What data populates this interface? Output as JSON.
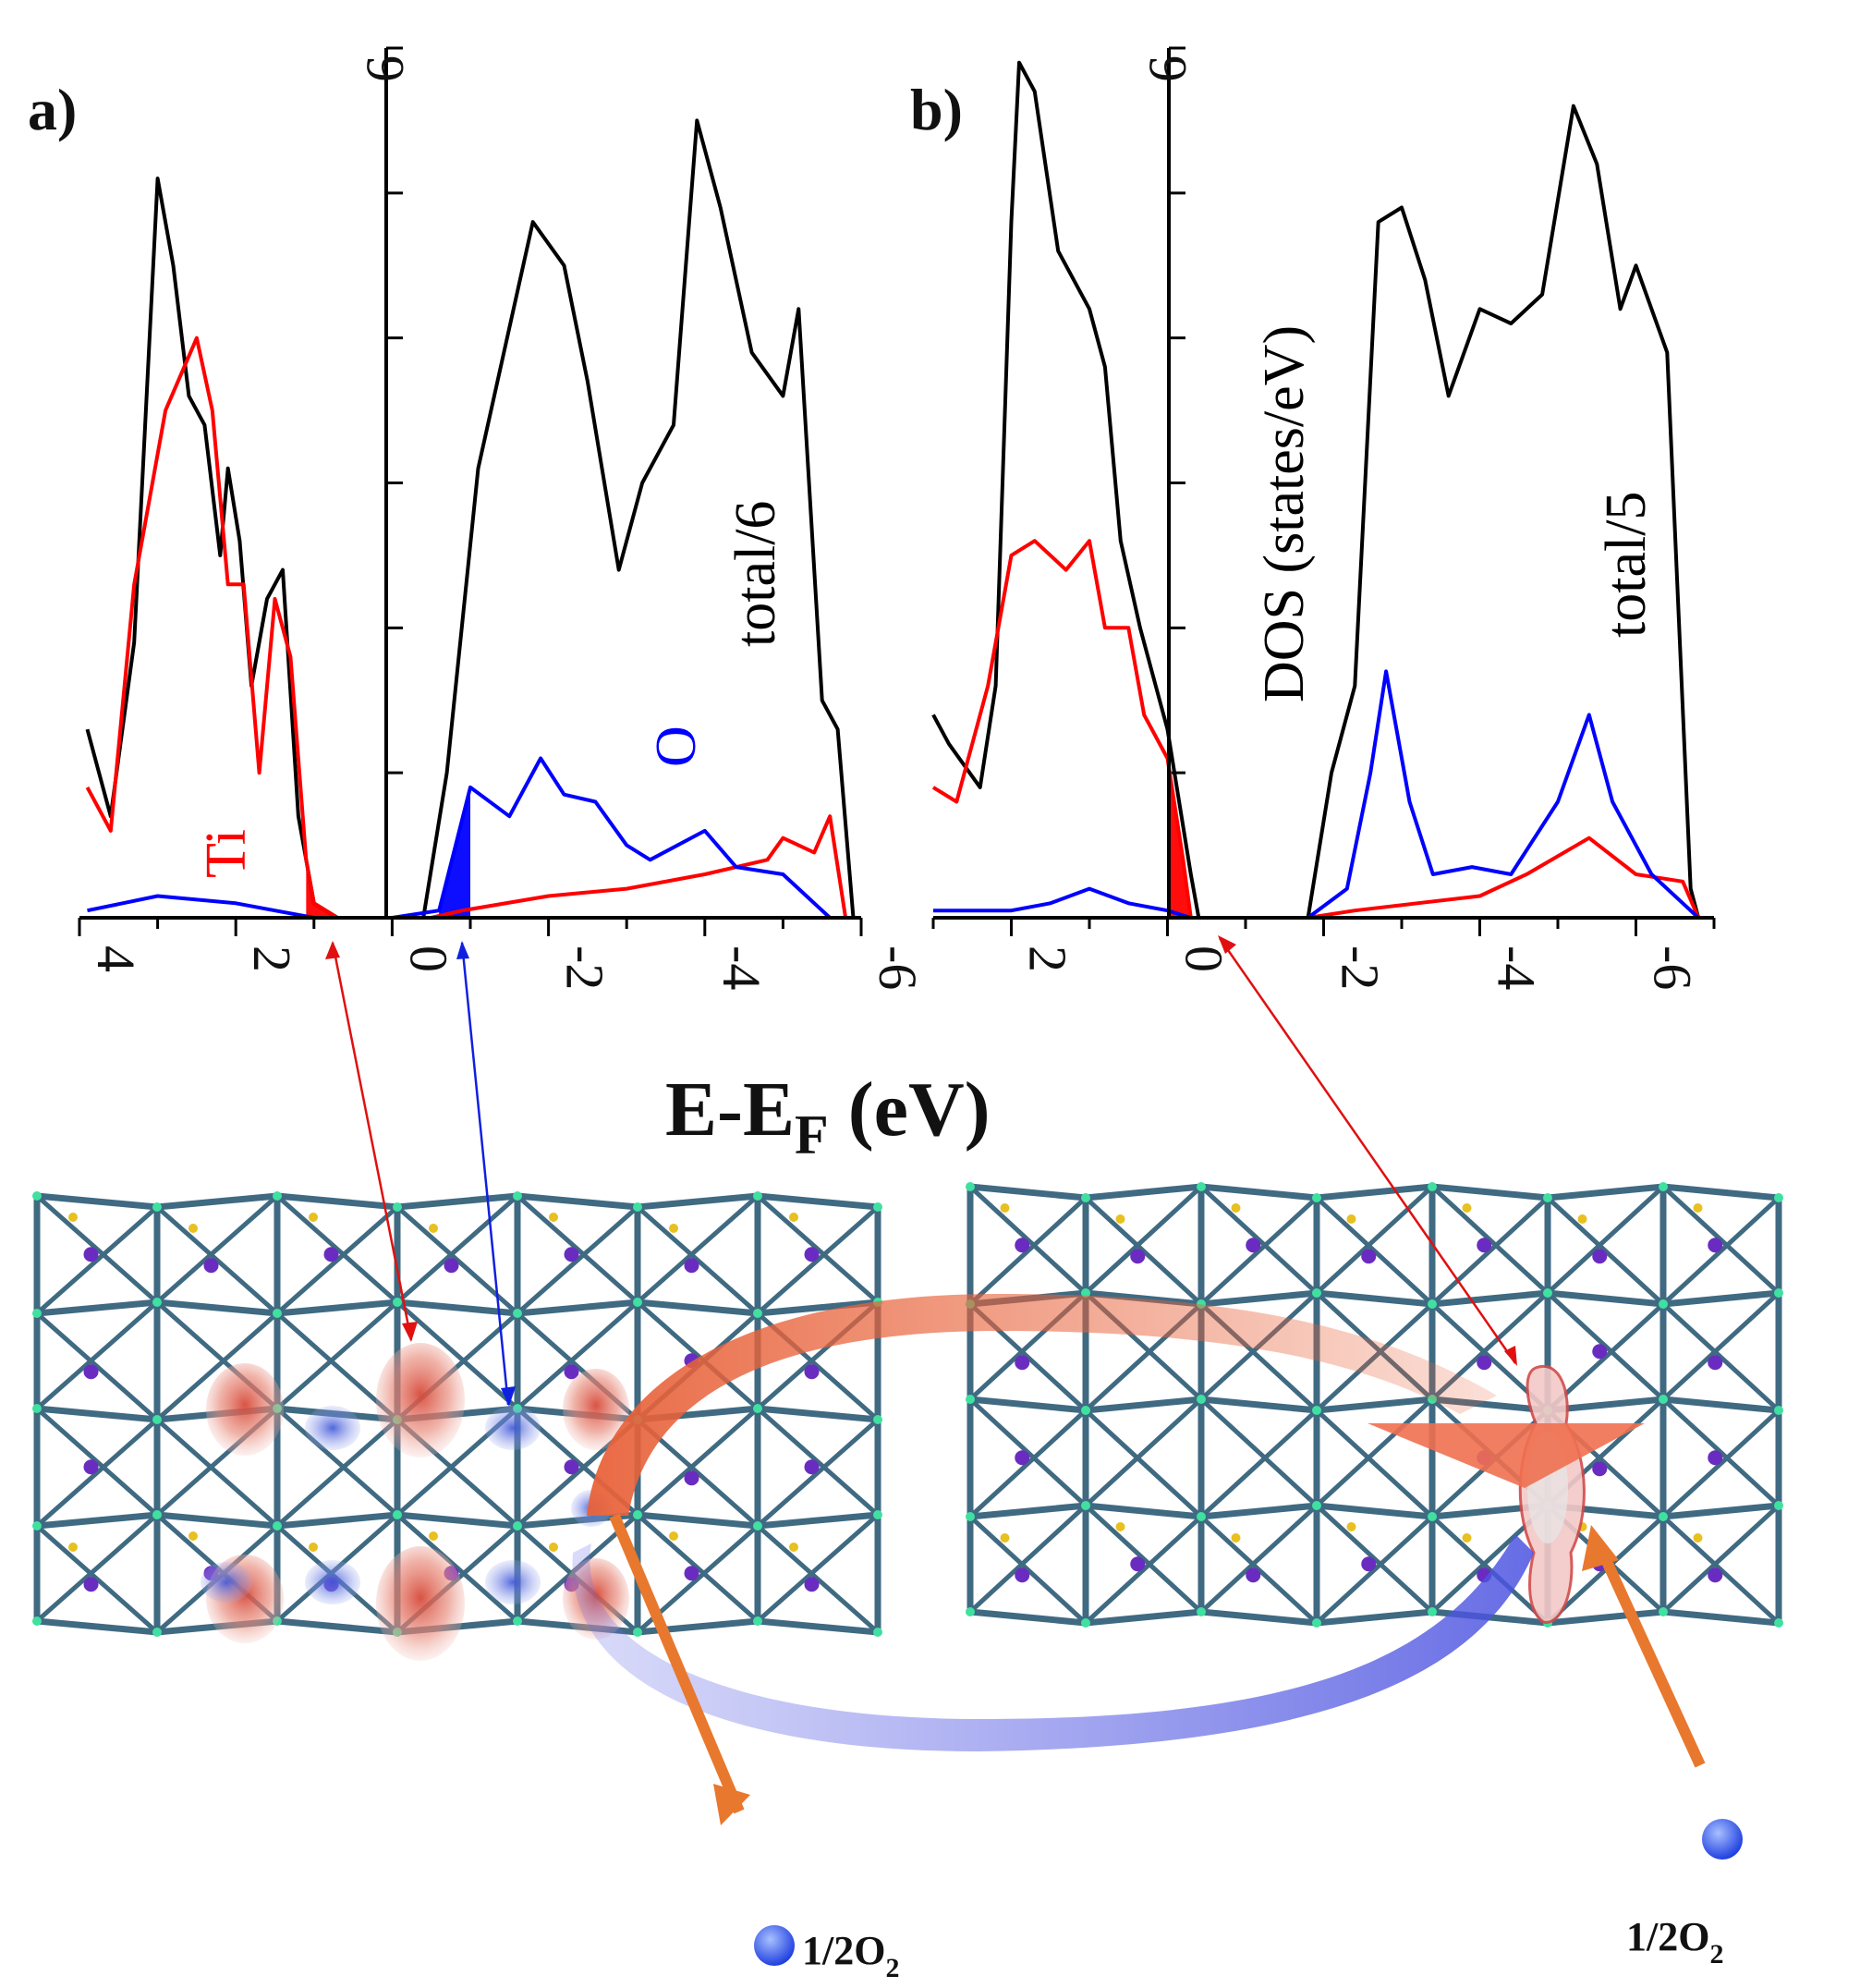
{
  "chart_data": [
    {
      "panel": "a)",
      "type": "line",
      "xlabel": "E-E_F (eV)",
      "ylabel": "",
      "x_axis_reversed": true,
      "xlim": [
        4,
        -6
      ],
      "ylim": [
        0,
        6
      ],
      "x_ticks": [
        "4",
        "2",
        "0",
        "-2",
        "-4",
        "-6"
      ],
      "y_ticks": [
        "6"
      ],
      "annotations": {
        "total": "total/6",
        "o": "O",
        "ti": "Ti"
      },
      "series": [
        {
          "name": "total/6",
          "color": "#000000",
          "points": [
            [
              3.9,
              1.3
            ],
            [
              3.6,
              0.7
            ],
            [
              3.3,
              1.9
            ],
            [
              3.0,
              5.1
            ],
            [
              2.8,
              4.5
            ],
            [
              2.6,
              3.6
            ],
            [
              2.4,
              3.4
            ],
            [
              2.2,
              2.5
            ],
            [
              2.1,
              3.1
            ],
            [
              1.95,
              2.6
            ],
            [
              1.8,
              1.6
            ],
            [
              1.6,
              2.2
            ],
            [
              1.4,
              2.4
            ],
            [
              1.2,
              0.7
            ],
            [
              1.0,
              0.1
            ],
            [
              0.7,
              0.0
            ],
            [
              -0.4,
              0.0
            ],
            [
              -0.7,
              1.0
            ],
            [
              -1.1,
              3.1
            ],
            [
              -1.8,
              4.8
            ],
            [
              -2.2,
              4.5
            ],
            [
              -2.5,
              3.7
            ],
            [
              -2.9,
              2.4
            ],
            [
              -3.2,
              3.0
            ],
            [
              -3.6,
              3.4
            ],
            [
              -3.9,
              5.5
            ],
            [
              -4.2,
              4.9
            ],
            [
              -4.6,
              3.9
            ],
            [
              -5.0,
              3.6
            ],
            [
              -5.2,
              4.2
            ],
            [
              -5.5,
              1.5
            ],
            [
              -5.7,
              1.3
            ],
            [
              -5.9,
              0.0
            ]
          ]
        },
        {
          "name": "Ti",
          "color": "#ff0000",
          "points": [
            [
              3.9,
              0.9
            ],
            [
              3.6,
              0.6
            ],
            [
              3.3,
              2.3
            ],
            [
              2.9,
              3.5
            ],
            [
              2.5,
              4.0
            ],
            [
              2.3,
              3.5
            ],
            [
              2.1,
              2.3
            ],
            [
              1.9,
              2.3
            ],
            [
              1.7,
              1.0
            ],
            [
              1.5,
              2.2
            ],
            [
              1.3,
              1.8
            ],
            [
              1.1,
              0.4
            ],
            [
              1.0,
              0.1
            ],
            [
              0.7,
              0.0
            ],
            [
              -0.5,
              0.0
            ],
            [
              -0.9,
              0.05
            ],
            [
              -2.0,
              0.15
            ],
            [
              -3.0,
              0.2
            ],
            [
              -4.0,
              0.3
            ],
            [
              -4.8,
              0.4
            ],
            [
              -5.0,
              0.55
            ],
            [
              -5.4,
              0.45
            ],
            [
              -5.6,
              0.7
            ],
            [
              -5.8,
              0.0
            ]
          ]
        },
        {
          "name": "O",
          "color": "#0000ff",
          "points": [
            [
              3.9,
              0.05
            ],
            [
              3.0,
              0.15
            ],
            [
              2.0,
              0.1
            ],
            [
              1.5,
              0.05
            ],
            [
              1.0,
              0.0
            ],
            [
              0.0,
              0.0
            ],
            [
              -0.6,
              0.05
            ],
            [
              -1.0,
              0.9
            ],
            [
              -1.5,
              0.7
            ],
            [
              -1.9,
              1.1
            ],
            [
              -2.2,
              0.85
            ],
            [
              -2.6,
              0.8
            ],
            [
              -3.0,
              0.5
            ],
            [
              -3.3,
              0.4
            ],
            [
              -4.0,
              0.6
            ],
            [
              -4.4,
              0.35
            ],
            [
              -5.0,
              0.3
            ],
            [
              -5.3,
              0.15
            ],
            [
              -5.6,
              0.0
            ]
          ]
        }
      ]
    },
    {
      "panel": "b)",
      "type": "line",
      "xlabel": "E-E_F (eV)",
      "ylabel": "DOS (states/eV)",
      "x_axis_reversed": true,
      "xlim": [
        3,
        -7
      ],
      "ylim": [
        0,
        6
      ],
      "x_ticks": [
        "2",
        "0",
        "-2",
        "-4",
        "-6"
      ],
      "y_ticks": [
        "6"
      ],
      "annotations": {
        "total": "total/5"
      },
      "series": [
        {
          "name": "total/5",
          "color": "#000000",
          "points": [
            [
              3.0,
              1.4
            ],
            [
              2.8,
              1.2
            ],
            [
              2.4,
              0.9
            ],
            [
              2.2,
              1.6
            ],
            [
              2.0,
              4.8
            ],
            [
              1.9,
              5.9
            ],
            [
              1.7,
              5.7
            ],
            [
              1.4,
              4.6
            ],
            [
              1.0,
              4.2
            ],
            [
              0.8,
              3.8
            ],
            [
              0.6,
              2.6
            ],
            [
              0.35,
              2.0
            ],
            [
              0.15,
              1.6
            ],
            [
              0.0,
              1.3
            ],
            [
              -0.3,
              0.3
            ],
            [
              -0.4,
              0.0
            ],
            [
              -1.8,
              0.0
            ],
            [
              -2.1,
              1.0
            ],
            [
              -2.4,
              1.6
            ],
            [
              -2.7,
              4.8
            ],
            [
              -3.0,
              4.9
            ],
            [
              -3.3,
              4.4
            ],
            [
              -3.6,
              3.6
            ],
            [
              -4.0,
              4.2
            ],
            [
              -4.4,
              4.1
            ],
            [
              -4.8,
              4.3
            ],
            [
              -5.2,
              5.6
            ],
            [
              -5.5,
              5.2
            ],
            [
              -5.8,
              4.2
            ],
            [
              -6.0,
              4.5
            ],
            [
              -6.4,
              3.9
            ],
            [
              -6.7,
              0.2
            ],
            [
              -6.8,
              0.0
            ]
          ]
        },
        {
          "name": "Ti",
          "color": "#ff0000",
          "points": [
            [
              3.0,
              0.9
            ],
            [
              2.7,
              0.8
            ],
            [
              2.3,
              1.6
            ],
            [
              2.0,
              2.5
            ],
            [
              1.7,
              2.6
            ],
            [
              1.3,
              2.4
            ],
            [
              1.0,
              2.6
            ],
            [
              0.8,
              2.0
            ],
            [
              0.5,
              2.0
            ],
            [
              0.3,
              1.4
            ],
            [
              0.0,
              1.1
            ],
            [
              -0.2,
              0.4
            ],
            [
              -0.3,
              0.0
            ],
            [
              -1.8,
              0.0
            ],
            [
              -2.4,
              0.05
            ],
            [
              -3.2,
              0.1
            ],
            [
              -4.0,
              0.15
            ],
            [
              -4.6,
              0.3
            ],
            [
              -5.4,
              0.55
            ],
            [
              -6.0,
              0.3
            ],
            [
              -6.6,
              0.25
            ],
            [
              -6.8,
              0.0
            ]
          ]
        },
        {
          "name": "O",
          "color": "#0000ff",
          "points": [
            [
              3.0,
              0.05
            ],
            [
              2.0,
              0.05
            ],
            [
              1.5,
              0.1
            ],
            [
              1.0,
              0.2
            ],
            [
              0.5,
              0.1
            ],
            [
              0.0,
              0.05
            ],
            [
              -0.3,
              0.0
            ],
            [
              -1.8,
              0.0
            ],
            [
              -2.3,
              0.2
            ],
            [
              -2.6,
              1.0
            ],
            [
              -2.8,
              1.7
            ],
            [
              -3.1,
              0.8
            ],
            [
              -3.4,
              0.3
            ],
            [
              -3.9,
              0.35
            ],
            [
              -4.4,
              0.3
            ],
            [
              -5.0,
              0.8
            ],
            [
              -5.4,
              1.4
            ],
            [
              -5.7,
              0.8
            ],
            [
              -6.2,
              0.3
            ],
            [
              -6.6,
              0.1
            ],
            [
              -6.8,
              0.0
            ]
          ]
        }
      ]
    }
  ],
  "axis_title": {
    "main": "E-E",
    "sub": "F",
    "unit": " (eV)"
  },
  "o2_labels": {
    "left": "1/2O",
    "right": "1/2O",
    "sub": "2"
  }
}
